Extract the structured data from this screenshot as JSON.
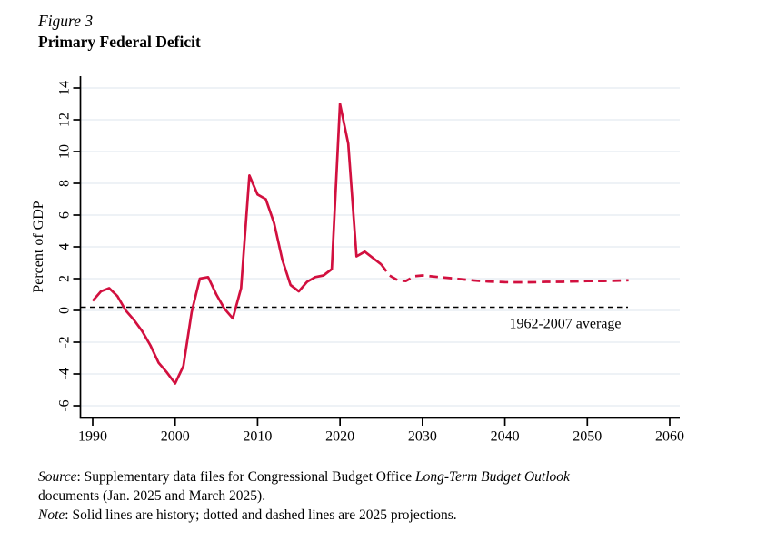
{
  "header": {
    "figure_label": "Figure 3",
    "title": "Primary Federal Deficit"
  },
  "chart_data": {
    "type": "line",
    "title": "Primary Federal Deficit",
    "xlabel": "",
    "ylabel": "Percent of GDP",
    "ylim": [
      -6,
      14
    ],
    "xlim": [
      1990,
      2060
    ],
    "yticks": [
      14,
      12,
      10,
      8,
      6,
      4,
      2,
      0,
      -2,
      -4,
      -6
    ],
    "xticks": [
      1990,
      2000,
      2010,
      2020,
      2030,
      2040,
      2050,
      2060
    ],
    "grid": true,
    "legend": "none",
    "line_color": "#d2103f",
    "grid_color": "#e9eef4",
    "axis_color": "#000000",
    "series": [
      {
        "name": "History (solid)",
        "style": "solid",
        "x": [
          1990,
          1991,
          1992,
          1993,
          1994,
          1995,
          1996,
          1997,
          1998,
          1999,
          2000,
          2001,
          2002,
          2003,
          2004,
          2005,
          2006,
          2007,
          2008,
          2009,
          2010,
          2011,
          2012,
          2013,
          2014,
          2015,
          2016,
          2017,
          2018,
          2019,
          2020,
          2021,
          2022,
          2023,
          2024,
          2025
        ],
        "values": [
          0.6,
          1.2,
          1.4,
          0.9,
          0.0,
          -0.6,
          -1.3,
          -2.2,
          -3.3,
          -3.9,
          -4.6,
          -3.5,
          -0.1,
          2.0,
          2.1,
          1.0,
          0.1,
          -0.5,
          1.4,
          8.5,
          7.3,
          7.0,
          5.5,
          3.2,
          1.6,
          1.2,
          1.8,
          2.1,
          2.2,
          2.6,
          13.0,
          10.5,
          3.4,
          3.7,
          3.3,
          2.9
        ]
      },
      {
        "name": "2025 projection (dashed)",
        "style": "dashed",
        "x": [
          2025,
          2026,
          2027,
          2028,
          2029,
          2030,
          2031,
          2032,
          2033,
          2034,
          2035,
          2036,
          2037,
          2038,
          2039,
          2040,
          2041,
          2042,
          2043,
          2044,
          2045,
          2046,
          2047,
          2048,
          2049,
          2050,
          2051,
          2052,
          2053,
          2054,
          2055
        ],
        "values": [
          2.9,
          2.2,
          1.9,
          1.85,
          2.15,
          2.2,
          2.15,
          2.1,
          2.05,
          2.0,
          1.95,
          1.9,
          1.85,
          1.82,
          1.8,
          1.78,
          1.77,
          1.77,
          1.77,
          1.78,
          1.8,
          1.8,
          1.8,
          1.82,
          1.83,
          1.85,
          1.85,
          1.85,
          1.86,
          1.88,
          1.9
        ]
      }
    ],
    "reference_line": {
      "value": 0.2,
      "label": "1962-2007 average",
      "style": "dashed",
      "color": "#000000"
    }
  },
  "notes": {
    "source_label": "Source",
    "source_line1_text": ": Supplementary data files for Congressional Budget Office ",
    "source_line1_em": "Long-Term Budget Outlook",
    "source_line2": "documents (Jan. 2025 and March 2025).",
    "note_label": "Note",
    "note_text": ": Solid lines are history; dotted and dashed lines are 2025 projections."
  }
}
